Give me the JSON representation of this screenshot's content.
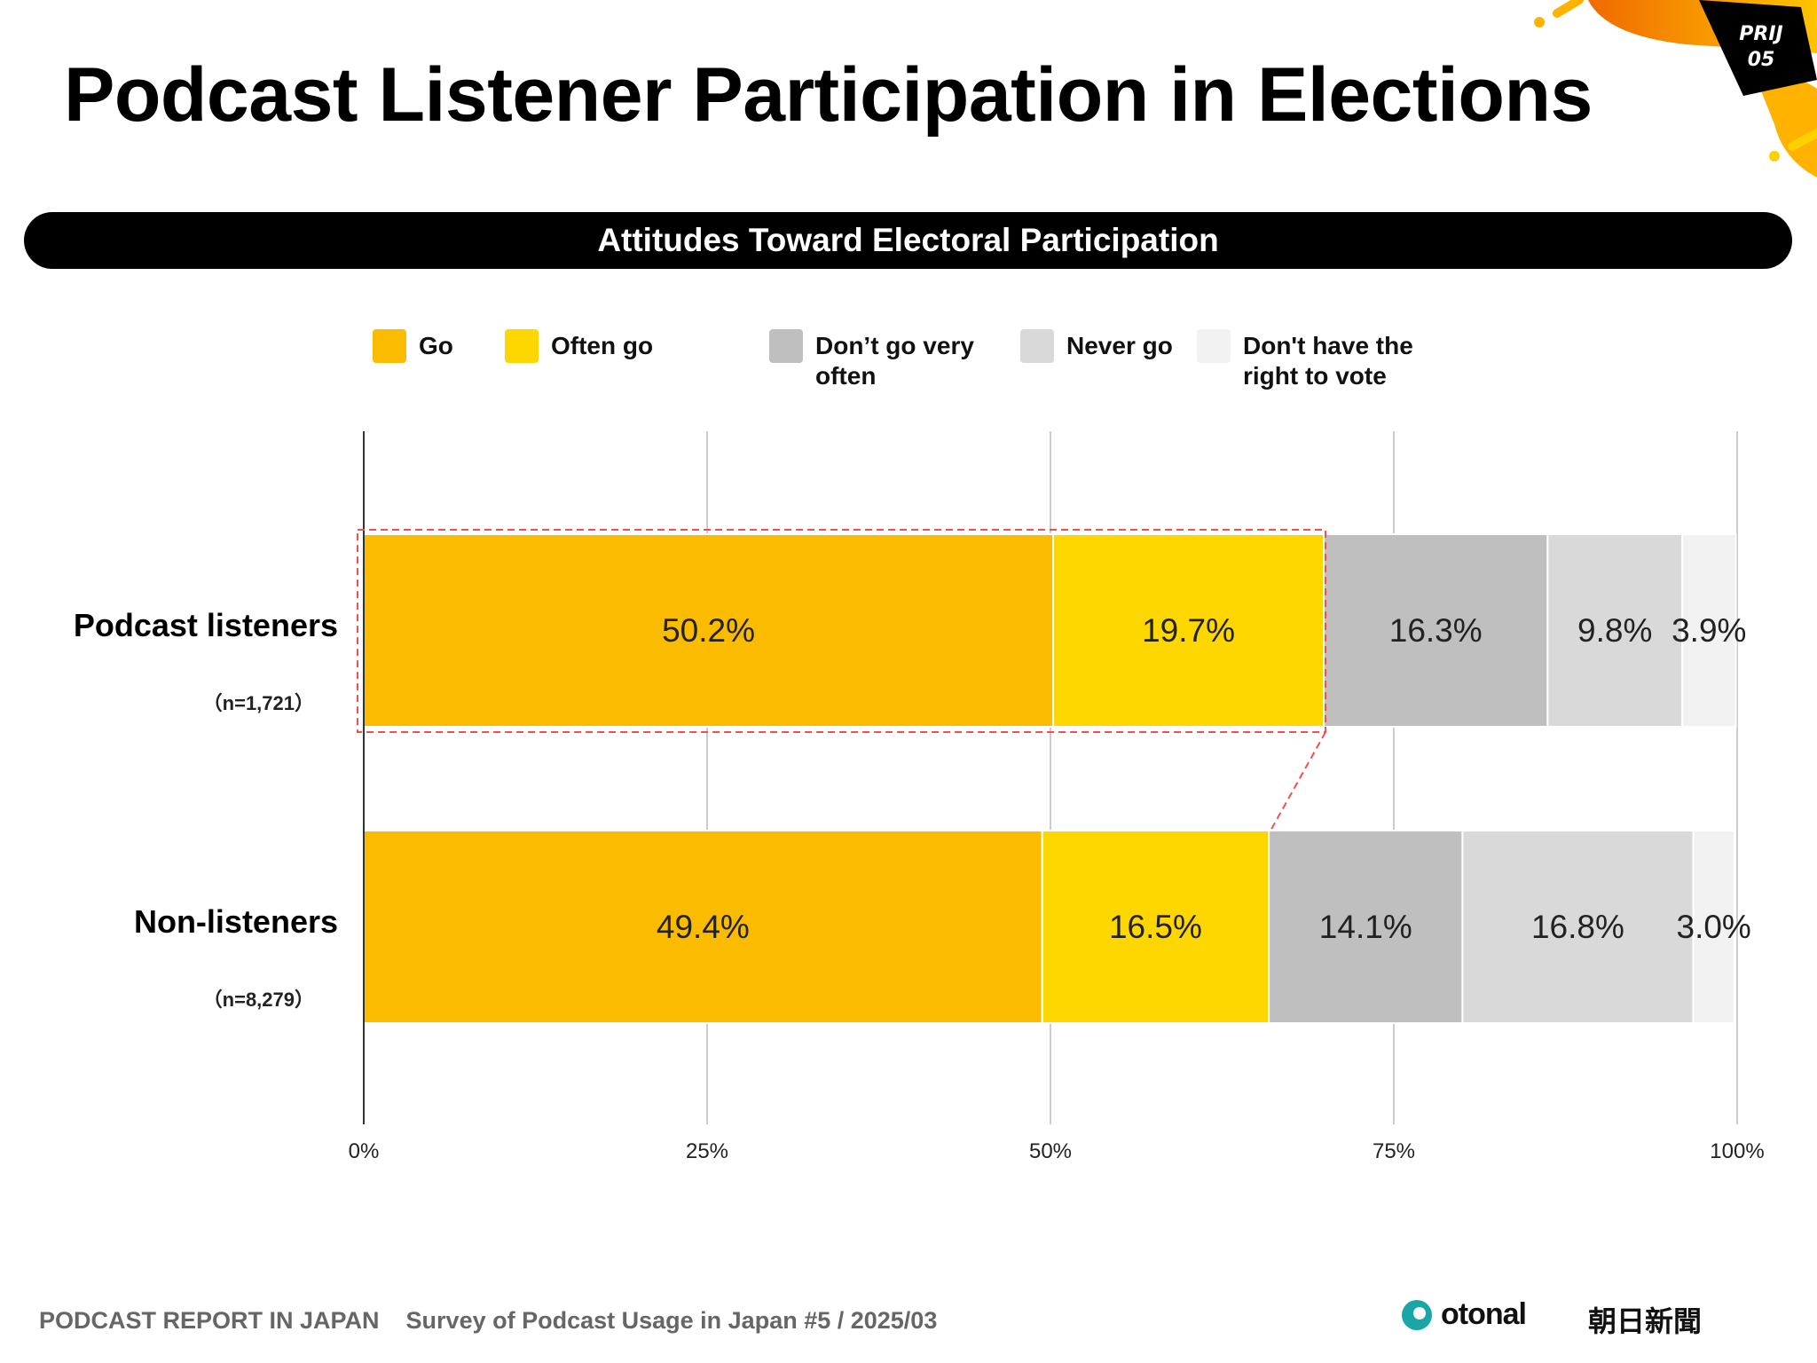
{
  "header": {
    "title": "Podcast Listener Participation in Elections",
    "badge": [
      "PRIJ",
      "05"
    ]
  },
  "banner": {
    "text": "Attitudes Toward Electoral Participation"
  },
  "footer": {
    "report": "PODCAST REPORT IN JAPAN",
    "survey": "Survey of Podcast Usage in Japan #5 / 2025/03",
    "logos": [
      "otonal",
      "朝日新聞"
    ]
  },
  "chart_data": {
    "type": "bar",
    "orientation": "horizontal-stacked-100",
    "title": "Attitudes Toward Electoral Participation",
    "categories": [
      "Podcast listeners",
      "Non-listeners"
    ],
    "sample_sizes": [
      "（n=1,721）",
      "（n=8,279）"
    ],
    "series": [
      {
        "name": "Go",
        "color": "#FBBC00",
        "values": [
          50.2,
          49.4
        ]
      },
      {
        "name": "Often go",
        "color": "#FFD700",
        "values": [
          19.7,
          16.5
        ]
      },
      {
        "name": "Don’t go very often",
        "color": "#BFBFBF",
        "values": [
          16.3,
          14.1
        ]
      },
      {
        "name": "Never go",
        "color": "#D9D9D9",
        "values": [
          9.8,
          16.8
        ]
      },
      {
        "name": "Don't have the right to vote",
        "color": "#F2F2F2",
        "values": [
          3.9,
          3.0
        ]
      }
    ],
    "data_labels": [
      [
        "50.2%",
        "19.7%",
        "16.3%",
        "9.8%",
        "3.9%"
      ],
      [
        "49.4%",
        "16.5%",
        "14.1%",
        "16.8%",
        "3.0%"
      ]
    ],
    "legend_lines": [
      [
        "Go"
      ],
      [
        "Often go"
      ],
      [
        "Don’t go very",
        "often"
      ],
      [
        "Never go"
      ],
      [
        "Don't have the",
        "right to vote"
      ]
    ],
    "xlim": [
      0,
      100
    ],
    "ticks": [
      "0%",
      "25%",
      "50%",
      "75%",
      "100%"
    ],
    "tick_values": [
      0,
      25,
      50,
      75,
      100
    ],
    "grid": true,
    "legend_position": "top",
    "highlight": "Podcast listeners: Go + Often go (red dashed box)"
  }
}
